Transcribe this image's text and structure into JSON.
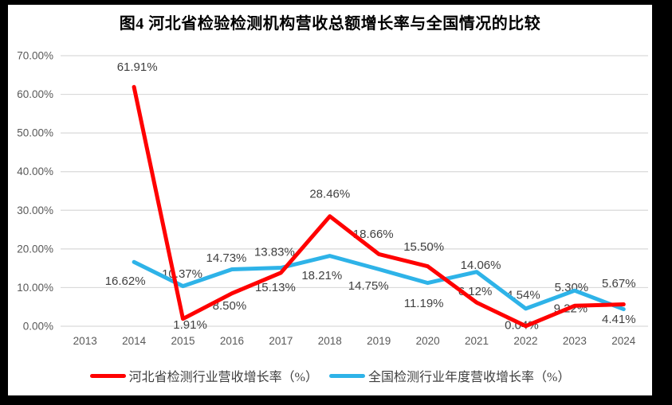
{
  "title": "图4 河北省检验检测机构营收总额增长率与全国情况的比较",
  "colors": {
    "frame": "#000000",
    "canvas": "#FFFFFF",
    "gridline": "#D9D9D9",
    "axis_text": "#595959",
    "data_label_text": "#404040",
    "title_text": "#000000",
    "hebei_series": "#FF0000",
    "national_series": "#2EB3E8"
  },
  "chart_data": {
    "type": "line",
    "title": "图4 河北省检验检测机构营收总额增长率与全国情况的比较",
    "categories": [
      "2013",
      "2014",
      "2015",
      "2016",
      "2017",
      "2018",
      "2019",
      "2020",
      "2021",
      "2022",
      "2023",
      "2024"
    ],
    "series": [
      {
        "name": "河北省检测行业营收增长率（%）",
        "color": "#FF0000",
        "values": [
          null,
          61.91,
          1.91,
          8.5,
          13.83,
          28.46,
          18.66,
          15.5,
          6.12,
          0.04,
          5.3,
          5.67
        ],
        "labels": [
          null,
          "61.91%",
          "1.91%",
          "8.50%",
          "13.83%",
          "28.46%",
          "18.66%",
          "15.50%",
          "6.12%",
          "0.04%",
          "5.30%",
          "5.67%"
        ]
      },
      {
        "name": "全国检测行业年度营收增长率（%）",
        "color": "#2EB3E8",
        "values": [
          null,
          16.62,
          10.37,
          14.73,
          15.13,
          18.21,
          14.75,
          11.19,
          14.06,
          4.54,
          9.22,
          4.41
        ],
        "labels": [
          null,
          "16.62%",
          "10.37%",
          "14.73%",
          "15.13%",
          "18.21%",
          "14.75%",
          "11.19%",
          "14.06%",
          "4.54%",
          "9.22%",
          "4.41%"
        ]
      }
    ],
    "y_axis": {
      "min": 0,
      "max": 70,
      "step": 10,
      "tick_labels": [
        "0.00%",
        "10.00%",
        "20.00%",
        "30.00%",
        "40.00%",
        "50.00%",
        "60.00%",
        "70.00%"
      ]
    },
    "x_axis": {
      "tick_labels": [
        "2013",
        "2014",
        "2015",
        "2016",
        "2017",
        "2018",
        "2019",
        "2020",
        "2021",
        "2022",
        "2023",
        "2024"
      ]
    },
    "grid": true,
    "legend_position": "bottom"
  },
  "legend": {
    "items": [
      {
        "label": "河北省检测行业营收增长率（%）",
        "color": "#FF0000"
      },
      {
        "label": "全国检测行业年度营收增长率（%）",
        "color": "#2EB3E8"
      }
    ]
  }
}
